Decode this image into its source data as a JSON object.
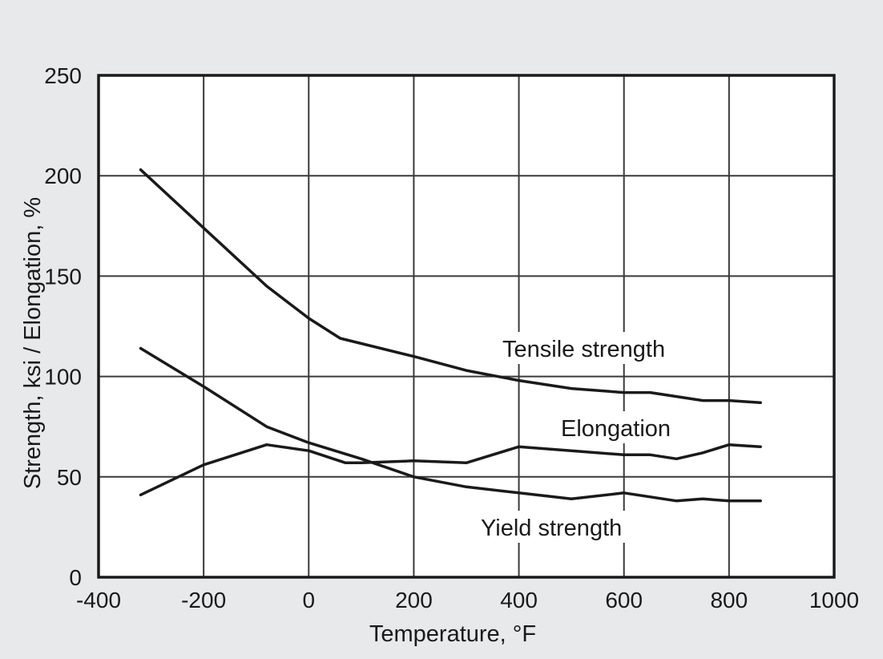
{
  "chart_data": {
    "type": "line",
    "xlabel": "Temperature, °F",
    "ylabel": "Strength, ksi / Elongation, %",
    "xlim": [
      -400,
      1000
    ],
    "ylim": [
      0,
      250
    ],
    "x_ticks": [
      -400,
      -200,
      0,
      200,
      400,
      600,
      800,
      1000
    ],
    "y_ticks": [
      0,
      50,
      100,
      150,
      200,
      250
    ],
    "grid": true,
    "series": [
      {
        "name": "Tensile strength",
        "x": [
          -320,
          -200,
          -80,
          0,
          60,
          200,
          300,
          400,
          500,
          600,
          650,
          700,
          750,
          800,
          860
        ],
        "y": [
          203,
          174,
          145,
          129,
          119,
          110,
          103,
          98,
          94,
          92,
          92,
          90,
          88,
          88,
          87
        ]
      },
      {
        "name": "Elongation",
        "x": [
          -320,
          -200,
          -80,
          0,
          70,
          100,
          200,
          300,
          400,
          500,
          600,
          650,
          700,
          750,
          800,
          860
        ],
        "y": [
          41,
          56,
          66,
          63,
          57,
          57,
          58,
          57,
          65,
          63,
          61,
          61,
          59,
          62,
          66,
          65
        ]
      },
      {
        "name": "Yield strength",
        "x": [
          -320,
          -200,
          -80,
          0,
          100,
          200,
          300,
          400,
          500,
          600,
          650,
          700,
          750,
          800,
          860
        ],
        "y": [
          114,
          95,
          75,
          67,
          59,
          50,
          45,
          42,
          39,
          42,
          40,
          38,
          39,
          38,
          38
        ]
      }
    ]
  }
}
